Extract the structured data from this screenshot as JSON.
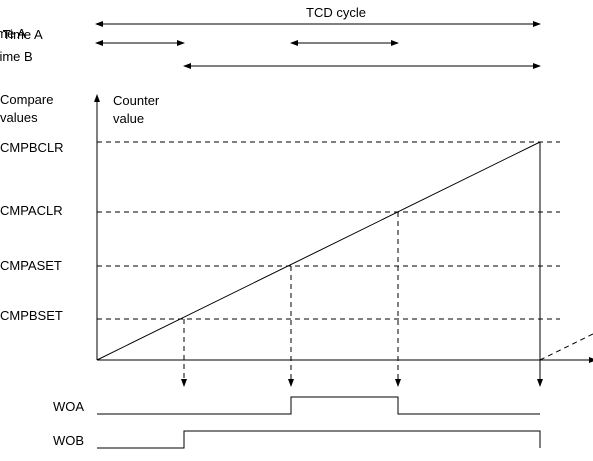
{
  "labels": {
    "cycle": "TCD cycle",
    "on_time_a": "On Time A",
    "time_a": "Time A",
    "time_b": "Time B",
    "compare_values": [
      "Compare",
      "values"
    ],
    "counter_value": [
      "Counter",
      "value"
    ],
    "levels": [
      "CMPBCLR",
      "CMPACLR",
      "CMPASET",
      "CMPBSET"
    ],
    "woa": "WOA",
    "wob": "WOB"
  }
}
